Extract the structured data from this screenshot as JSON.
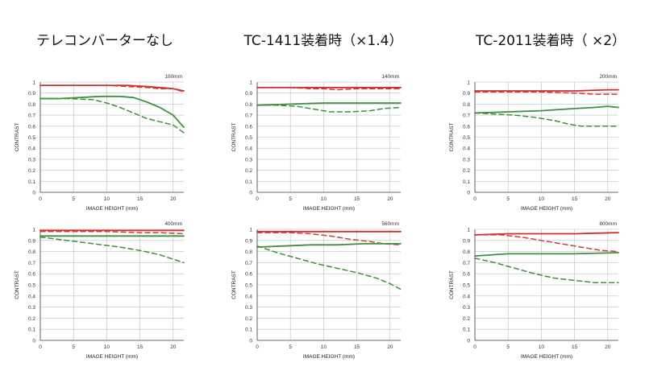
{
  "columns": [
    {
      "title": "テレコンバーターなし"
    },
    {
      "title": "TC-1411装着時（×1.4）"
    },
    {
      "title": "TC-2011装着時（ ×2）"
    }
  ],
  "colors": {
    "red": "#d62a2a",
    "red_dashed": "#c84040",
    "green": "#3f8f3f",
    "green_dashed": "#3f8f3f",
    "grid": "#bdbdbd",
    "axis": "#444444"
  },
  "chart_data": [
    {
      "type": "line",
      "panel_label": "100mm",
      "xlabel": "IMAGE HEIGHT (mm)",
      "ylabel": "CONTRAST",
      "xlim": [
        0,
        21.6
      ],
      "ylim": [
        0,
        1
      ],
      "xticks": [
        "0",
        "5",
        "10",
        "15",
        "20"
      ],
      "yticks": [
        "0",
        "0.1",
        "0.2",
        "0.3",
        "0.4",
        "0.5",
        "0.6",
        "0.7",
        "0.8",
        "0.9",
        "1"
      ],
      "grid": true,
      "series": [
        {
          "style": "red_solid",
          "points": [
            [
              0,
              0.97
            ],
            [
              5,
              0.97
            ],
            [
              10,
              0.97
            ],
            [
              13,
              0.97
            ],
            [
              16,
              0.96
            ],
            [
              18,
              0.95
            ],
            [
              20,
              0.94
            ],
            [
              21.6,
              0.92
            ]
          ]
        },
        {
          "style": "red_dashed",
          "points": [
            [
              0,
              0.97
            ],
            [
              5,
              0.97
            ],
            [
              10,
              0.97
            ],
            [
              13,
              0.96
            ],
            [
              16,
              0.95
            ],
            [
              18,
              0.94
            ],
            [
              20,
              0.94
            ],
            [
              21.6,
              0.91
            ]
          ]
        },
        {
          "style": "green_solid",
          "points": [
            [
              0,
              0.85
            ],
            [
              3,
              0.85
            ],
            [
              6,
              0.86
            ],
            [
              9,
              0.87
            ],
            [
              12,
              0.87
            ],
            [
              14,
              0.86
            ],
            [
              16,
              0.82
            ],
            [
              18,
              0.77
            ],
            [
              20,
              0.7
            ],
            [
              21.6,
              0.59
            ]
          ]
        },
        {
          "style": "green_dashed",
          "points": [
            [
              0,
              0.85
            ],
            [
              4,
              0.85
            ],
            [
              8,
              0.84
            ],
            [
              10,
              0.81
            ],
            [
              12,
              0.77
            ],
            [
              14,
              0.72
            ],
            [
              16,
              0.67
            ],
            [
              18,
              0.64
            ],
            [
              20,
              0.61
            ],
            [
              21.6,
              0.54
            ]
          ]
        }
      ]
    },
    {
      "type": "line",
      "panel_label": "140mm",
      "xlabel": "IMAGE HEIGHT (mm)",
      "ylabel": "CONTRAST",
      "xlim": [
        0,
        21.6
      ],
      "ylim": [
        0,
        1
      ],
      "xticks": [
        "0",
        "5",
        "10",
        "15",
        "20"
      ],
      "yticks": [
        "0",
        "0.1",
        "0.2",
        "0.3",
        "0.4",
        "0.5",
        "0.6",
        "0.7",
        "0.8",
        "0.9",
        "1"
      ],
      "grid": true,
      "series": [
        {
          "style": "red_solid",
          "points": [
            [
              0,
              0.95
            ],
            [
              5,
              0.95
            ],
            [
              10,
              0.95
            ],
            [
              15,
              0.95
            ],
            [
              21.6,
              0.95
            ]
          ]
        },
        {
          "style": "red_dashed",
          "points": [
            [
              0,
              0.95
            ],
            [
              5,
              0.95
            ],
            [
              8,
              0.94
            ],
            [
              10,
              0.94
            ],
            [
              12,
              0.93
            ],
            [
              15,
              0.94
            ],
            [
              18,
              0.94
            ],
            [
              21.6,
              0.94
            ]
          ]
        },
        {
          "style": "green_solid",
          "points": [
            [
              0,
              0.79
            ],
            [
              5,
              0.8
            ],
            [
              10,
              0.81
            ],
            [
              15,
              0.81
            ],
            [
              21.6,
              0.81
            ]
          ]
        },
        {
          "style": "green_dashed",
          "points": [
            [
              0,
              0.79
            ],
            [
              3,
              0.79
            ],
            [
              6,
              0.78
            ],
            [
              9,
              0.75
            ],
            [
              11,
              0.73
            ],
            [
              14,
              0.73
            ],
            [
              17,
              0.74
            ],
            [
              19,
              0.76
            ],
            [
              21.6,
              0.77
            ]
          ]
        }
      ]
    },
    {
      "type": "line",
      "panel_label": "200mm",
      "xlabel": "IMAGE HEIGHT (mm)",
      "ylabel": "CONTRAST",
      "xlim": [
        0,
        21.6
      ],
      "ylim": [
        0,
        1
      ],
      "xticks": [
        "0",
        "5",
        "10",
        "15",
        "20"
      ],
      "yticks": [
        "0",
        "0.1",
        "0.2",
        "0.3",
        "0.4",
        "0.5",
        "0.6",
        "0.7",
        "0.8",
        "0.9",
        "1"
      ],
      "grid": true,
      "series": [
        {
          "style": "red_solid",
          "points": [
            [
              0,
              0.92
            ],
            [
              5,
              0.92
            ],
            [
              10,
              0.92
            ],
            [
              15,
              0.92
            ],
            [
              20,
              0.93
            ],
            [
              21.6,
              0.93
            ]
          ]
        },
        {
          "style": "red_dashed",
          "points": [
            [
              0,
              0.91
            ],
            [
              5,
              0.91
            ],
            [
              10,
              0.91
            ],
            [
              15,
              0.9
            ],
            [
              18,
              0.89
            ],
            [
              21.6,
              0.89
            ]
          ]
        },
        {
          "style": "green_solid",
          "points": [
            [
              0,
              0.72
            ],
            [
              5,
              0.73
            ],
            [
              10,
              0.74
            ],
            [
              15,
              0.76
            ],
            [
              18,
              0.77
            ],
            [
              20,
              0.78
            ],
            [
              21.6,
              0.77
            ]
          ]
        },
        {
          "style": "green_dashed",
          "points": [
            [
              0,
              0.72
            ],
            [
              3,
              0.71
            ],
            [
              6,
              0.7
            ],
            [
              9,
              0.68
            ],
            [
              12,
              0.65
            ],
            [
              14,
              0.62
            ],
            [
              16,
              0.6
            ],
            [
              18,
              0.6
            ],
            [
              21.6,
              0.6
            ]
          ]
        }
      ]
    },
    {
      "type": "line",
      "panel_label": "400mm",
      "xlabel": "IMAGE HEIGHT (mm)",
      "ylabel": "CONTRAST",
      "xlim": [
        0,
        21.6
      ],
      "ylim": [
        0,
        1
      ],
      "xticks": [
        "0",
        "5",
        "10",
        "15",
        "20"
      ],
      "yticks": [
        "0",
        "0.1",
        "0.2",
        "0.3",
        "0.4",
        "0.5",
        "0.6",
        "0.7",
        "0.8",
        "0.9",
        "1"
      ],
      "grid": true,
      "series": [
        {
          "style": "red_solid",
          "points": [
            [
              0,
              0.99
            ],
            [
              5,
              0.99
            ],
            [
              10,
              0.99
            ],
            [
              15,
              0.99
            ],
            [
              21.6,
              0.99
            ]
          ]
        },
        {
          "style": "red_dashed",
          "points": [
            [
              0,
              0.98
            ],
            [
              5,
              0.98
            ],
            [
              10,
              0.98
            ],
            [
              15,
              0.97
            ],
            [
              18,
              0.97
            ],
            [
              21.6,
              0.96
            ]
          ]
        },
        {
          "style": "green_solid",
          "points": [
            [
              0,
              0.94
            ],
            [
              5,
              0.94
            ],
            [
              10,
              0.94
            ],
            [
              15,
              0.94
            ],
            [
              21.6,
              0.94
            ]
          ]
        },
        {
          "style": "green_dashed",
          "points": [
            [
              0,
              0.93
            ],
            [
              4,
              0.9
            ],
            [
              8,
              0.87
            ],
            [
              12,
              0.84
            ],
            [
              15,
              0.81
            ],
            [
              18,
              0.77
            ],
            [
              21.6,
              0.7
            ]
          ]
        }
      ]
    },
    {
      "type": "line",
      "panel_label": "560mm",
      "xlabel": "IMAGE HEIGHT (mm)",
      "ylabel": "CONTRAST",
      "xlim": [
        0,
        21.6
      ],
      "ylim": [
        0,
        1
      ],
      "xticks": [
        "0",
        "5",
        "10",
        "15",
        "20"
      ],
      "yticks": [
        "0",
        "0.1",
        "0.2",
        "0.3",
        "0.4",
        "0.5",
        "0.6",
        "0.7",
        "0.8",
        "0.9",
        "1"
      ],
      "grid": true,
      "series": [
        {
          "style": "red_solid",
          "points": [
            [
              0,
              0.98
            ],
            [
              5,
              0.98
            ],
            [
              10,
              0.98
            ],
            [
              15,
              0.98
            ],
            [
              21.6,
              0.98
            ]
          ]
        },
        {
          "style": "red_dashed",
          "points": [
            [
              0,
              0.97
            ],
            [
              5,
              0.97
            ],
            [
              8,
              0.96
            ],
            [
              11,
              0.94
            ],
            [
              14,
              0.91
            ],
            [
              17,
              0.89
            ],
            [
              19,
              0.87
            ],
            [
              21.6,
              0.86
            ]
          ]
        },
        {
          "style": "green_solid",
          "points": [
            [
              0,
              0.84
            ],
            [
              4,
              0.85
            ],
            [
              8,
              0.86
            ],
            [
              12,
              0.86
            ],
            [
              16,
              0.87
            ],
            [
              21.6,
              0.87
            ]
          ]
        },
        {
          "style": "green_dashed",
          "points": [
            [
              0,
              0.85
            ],
            [
              3,
              0.79
            ],
            [
              6,
              0.74
            ],
            [
              9,
              0.69
            ],
            [
              12,
              0.65
            ],
            [
              15,
              0.61
            ],
            [
              18,
              0.56
            ],
            [
              20,
              0.51
            ],
            [
              21.6,
              0.46
            ]
          ]
        }
      ]
    },
    {
      "type": "line",
      "panel_label": "800mm",
      "xlabel": "IMAGE HEIGHT (mm)",
      "ylabel": "CONTRAST",
      "xlim": [
        0,
        21.6
      ],
      "ylim": [
        0,
        1
      ],
      "xticks": [
        "0",
        "5",
        "10",
        "15",
        "20"
      ],
      "yticks": [
        "0",
        "0.1",
        "0.2",
        "0.3",
        "0.4",
        "0.5",
        "0.6",
        "0.7",
        "0.8",
        "0.9",
        "1"
      ],
      "grid": true,
      "series": [
        {
          "style": "red_solid",
          "points": [
            [
              0,
              0.95
            ],
            [
              5,
              0.96
            ],
            [
              10,
              0.96
            ],
            [
              15,
              0.96
            ],
            [
              21.6,
              0.97
            ]
          ]
        },
        {
          "style": "red_dashed",
          "points": [
            [
              0,
              0.95
            ],
            [
              4,
              0.95
            ],
            [
              7,
              0.93
            ],
            [
              10,
              0.9
            ],
            [
              13,
              0.87
            ],
            [
              16,
              0.84
            ],
            [
              19,
              0.81
            ],
            [
              21.6,
              0.8
            ]
          ]
        },
        {
          "style": "green_solid",
          "points": [
            [
              0,
              0.76
            ],
            [
              5,
              0.78
            ],
            [
              10,
              0.78
            ],
            [
              15,
              0.78
            ],
            [
              21.6,
              0.79
            ]
          ]
        },
        {
          "style": "green_dashed",
          "points": [
            [
              0,
              0.74
            ],
            [
              3,
              0.7
            ],
            [
              6,
              0.65
            ],
            [
              9,
              0.6
            ],
            [
              12,
              0.56
            ],
            [
              15,
              0.54
            ],
            [
              18,
              0.52
            ],
            [
              21.6,
              0.52
            ]
          ]
        }
      ]
    }
  ]
}
